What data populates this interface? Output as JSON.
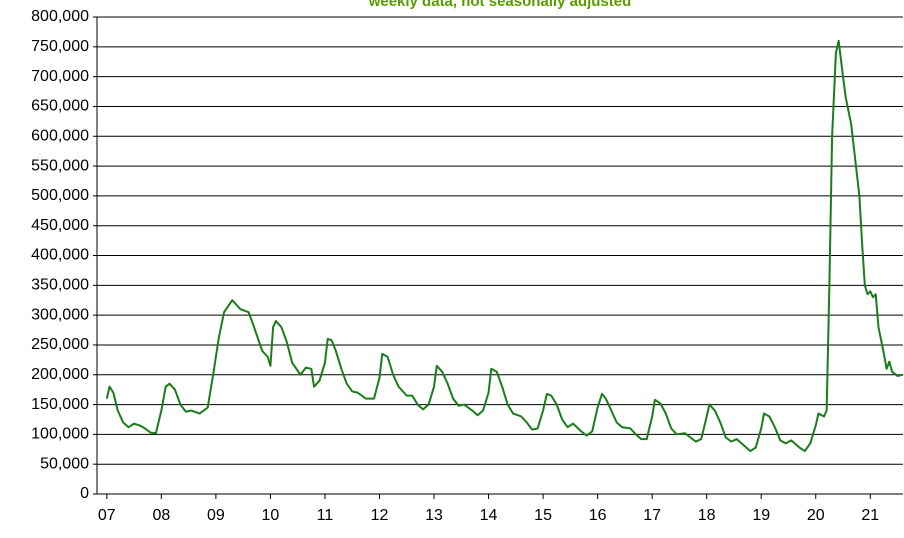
{
  "chart_data": {
    "type": "line",
    "title": "weekly data, not seasonally adjusted",
    "title_color": "#5b9c00",
    "grid": true,
    "xlim": [
      2006.82,
      2021.6
    ],
    "xticks": [
      {
        "value": 2007,
        "label": "07"
      },
      {
        "value": 2008,
        "label": "08"
      },
      {
        "value": 2009,
        "label": "09"
      },
      {
        "value": 2010,
        "label": "10"
      },
      {
        "value": 2011,
        "label": "11"
      },
      {
        "value": 2012,
        "label": "12"
      },
      {
        "value": 2013,
        "label": "13"
      },
      {
        "value": 2014,
        "label": "14"
      },
      {
        "value": 2015,
        "label": "15"
      },
      {
        "value": 2016,
        "label": "16"
      },
      {
        "value": 2017,
        "label": "17"
      },
      {
        "value": 2018,
        "label": "18"
      },
      {
        "value": 2019,
        "label": "19"
      },
      {
        "value": 2020,
        "label": "20"
      },
      {
        "value": 2021,
        "label": "21"
      }
    ],
    "ylim": [
      0,
      800000
    ],
    "yticks": [
      0,
      {
        "value": 50000,
        "label": "50,000"
      },
      {
        "value": 100000,
        "label": "100,000"
      },
      {
        "value": 150000,
        "label": "150,000"
      },
      {
        "value": 200000,
        "label": "200,000"
      },
      {
        "value": 250000,
        "label": "250,000"
      },
      {
        "value": 300000,
        "label": "300,000"
      },
      {
        "value": 350000,
        "label": "350,000"
      },
      {
        "value": 400000,
        "label": "400,000"
      },
      {
        "value": 450000,
        "label": "450,000"
      },
      {
        "value": 500000,
        "label": "500,000"
      },
      {
        "value": 550000,
        "label": "550,000"
      },
      {
        "value": 600000,
        "label": "600,000"
      },
      {
        "value": 650000,
        "label": "650,000"
      },
      {
        "value": 700000,
        "label": "700,000"
      },
      {
        "value": 750000,
        "label": "750,000"
      },
      {
        "value": 800000,
        "label": "800,000"
      }
    ],
    "x": [
      2007.0,
      2007.05,
      2007.12,
      2007.2,
      2007.3,
      2007.4,
      2007.5,
      2007.6,
      2007.7,
      2007.8,
      2007.9,
      2008.0,
      2008.08,
      2008.15,
      2008.25,
      2008.35,
      2008.45,
      2008.55,
      2008.7,
      2008.85,
      2008.95,
      2009.05,
      2009.15,
      2009.3,
      2009.45,
      2009.6,
      2009.7,
      2009.85,
      2009.95,
      2010.0,
      2010.05,
      2010.1,
      2010.2,
      2010.3,
      2010.4,
      2010.55,
      2010.65,
      2010.75,
      2010.8,
      2010.9,
      2011.0,
      2011.05,
      2011.12,
      2011.2,
      2011.3,
      2011.4,
      2011.5,
      2011.6,
      2011.75,
      2011.9,
      2012.0,
      2012.05,
      2012.15,
      2012.25,
      2012.35,
      2012.5,
      2012.6,
      2012.7,
      2012.8,
      2012.9,
      2013.0,
      2013.05,
      2013.15,
      2013.25,
      2013.35,
      2013.45,
      2013.55,
      2013.7,
      2013.8,
      2013.9,
      2014.0,
      2014.05,
      2014.15,
      2014.25,
      2014.35,
      2014.45,
      2014.6,
      2014.7,
      2014.8,
      2014.9,
      2015.0,
      2015.07,
      2015.15,
      2015.25,
      2015.35,
      2015.45,
      2015.55,
      2015.7,
      2015.8,
      2015.9,
      2016.0,
      2016.08,
      2016.15,
      2016.25,
      2016.35,
      2016.45,
      2016.6,
      2016.7,
      2016.8,
      2016.9,
      2017.0,
      2017.05,
      2017.15,
      2017.25,
      2017.35,
      2017.45,
      2017.6,
      2017.7,
      2017.8,
      2017.9,
      2018.0,
      2018.05,
      2018.15,
      2018.25,
      2018.35,
      2018.45,
      2018.55,
      2018.7,
      2018.8,
      2018.9,
      2019.0,
      2019.05,
      2019.15,
      2019.25,
      2019.35,
      2019.45,
      2019.55,
      2019.7,
      2019.8,
      2019.9,
      2020.0,
      2020.05,
      2020.15,
      2020.2,
      2020.25,
      2020.3,
      2020.37,
      2020.42,
      2020.5,
      2020.55,
      2020.65,
      2020.75,
      2020.8,
      2020.85,
      2020.9,
      2020.95,
      2021.0,
      2021.05,
      2021.1,
      2021.15,
      2021.25,
      2021.3,
      2021.35,
      2021.4,
      2021.5,
      2021.6
    ],
    "series": [
      {
        "color": "#1a7d1a",
        "values": [
          160000,
          180000,
          170000,
          140000,
          120000,
          112000,
          118000,
          115000,
          110000,
          103000,
          102000,
          140000,
          180000,
          185000,
          175000,
          150000,
          138000,
          140000,
          135000,
          145000,
          200000,
          260000,
          305000,
          325000,
          310000,
          305000,
          280000,
          240000,
          230000,
          215000,
          280000,
          290000,
          280000,
          255000,
          220000,
          200000,
          212000,
          210000,
          180000,
          190000,
          220000,
          260000,
          258000,
          240000,
          210000,
          185000,
          172000,
          170000,
          160000,
          160000,
          195000,
          235000,
          230000,
          200000,
          180000,
          165000,
          165000,
          150000,
          142000,
          150000,
          180000,
          215000,
          205000,
          185000,
          160000,
          148000,
          150000,
          140000,
          132000,
          140000,
          170000,
          210000,
          205000,
          180000,
          150000,
          135000,
          130000,
          120000,
          108000,
          110000,
          140000,
          168000,
          165000,
          150000,
          125000,
          112000,
          118000,
          105000,
          98000,
          105000,
          145000,
          168000,
          160000,
          140000,
          120000,
          112000,
          110000,
          100000,
          92000,
          92000,
          130000,
          158000,
          152000,
          135000,
          110000,
          100000,
          102000,
          95000,
          88000,
          92000,
          130000,
          150000,
          140000,
          120000,
          95000,
          88000,
          92000,
          80000,
          72000,
          78000,
          110000,
          135000,
          130000,
          112000,
          90000,
          85000,
          90000,
          78000,
          72000,
          85000,
          115000,
          135000,
          130000,
          140000,
          350000,
          600000,
          740000,
          760000,
          700000,
          665000,
          620000,
          540000,
          500000,
          420000,
          350000,
          335000,
          340000,
          330000,
          335000,
          280000,
          235000,
          210000,
          222000,
          205000,
          198000,
          200000
        ]
      }
    ]
  }
}
